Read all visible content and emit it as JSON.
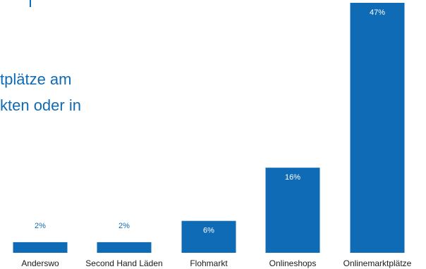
{
  "intro": {
    "line1": "tplätze am",
    "line2": "kten oder in"
  },
  "colors": {
    "bar": "#0f6bb5",
    "label_inside": "#ffffff",
    "label_above": "#0f6bb5",
    "text": "#1a1a1a"
  },
  "chart_data": {
    "type": "bar",
    "categories": [
      "Anderswo",
      "Second Hand Läden",
      "Flohmarkt",
      "Onlineshops",
      "Onlinemarktplätze"
    ],
    "values": [
      2,
      2,
      6,
      16,
      47
    ],
    "value_labels": [
      "2%",
      "2%",
      "6%",
      "16%",
      "47%"
    ],
    "ylim": [
      0,
      47
    ],
    "grid": false,
    "legend": "none",
    "title": "",
    "xlabel": "",
    "ylabel": ""
  }
}
